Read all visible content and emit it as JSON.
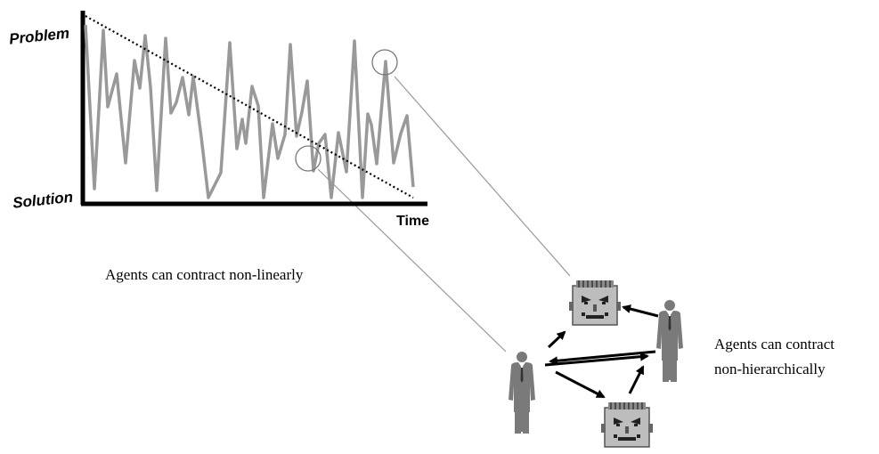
{
  "chart": {
    "y_label_top": "Problem",
    "y_label_bottom": "Solution",
    "x_label": "Time"
  },
  "captions": {
    "nonlinear": "Agents can contract non-linearly",
    "nonhierarchical_line1": "Agents can contract",
    "nonhierarchical_line2": "non-hierarchically"
  },
  "icons": {
    "robot": "robot-face-icon",
    "person": "businessman-icon"
  },
  "colors": {
    "signal": "#999999",
    "trend": "#000000",
    "figure": "#7a7a7a"
  }
}
